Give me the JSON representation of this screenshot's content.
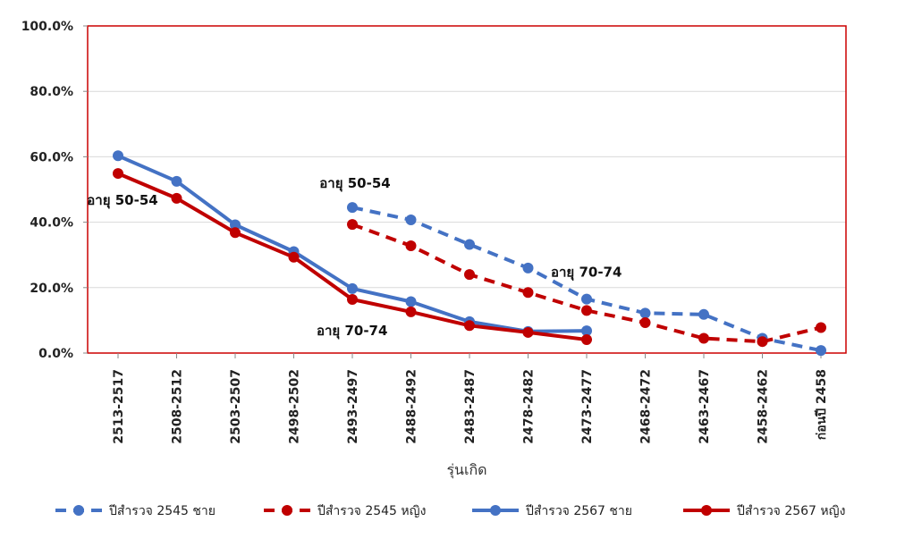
{
  "chart_data": {
    "type": "line",
    "xlabel": "รุ่นเกิด",
    "ylabel": "",
    "ylim": [
      0,
      100
    ],
    "y_tick_labels": [
      "0.0%",
      "20.0%",
      "40.0%",
      "60.0%",
      "80.0%",
      "100.0%"
    ],
    "y_ticks": [
      0,
      20,
      40,
      60,
      80,
      100
    ],
    "categories": [
      "2513-2517",
      "2508-2512",
      "2503-2507",
      "2498-2502",
      "2493-2497",
      "2488-2492",
      "2483-2487",
      "2478-2482",
      "2473-2477",
      "2468-2472",
      "2463-2467",
      "2458-2462",
      "ก่อนปี 2458"
    ],
    "grid": true,
    "legend_position": "bottom",
    "series": [
      {
        "name": "ปีสำรวจ 2545 ชาย",
        "color": "#4472C4",
        "dashed": true,
        "values": [
          null,
          null,
          null,
          null,
          44.5,
          40.7,
          33.2,
          26.0,
          16.5,
          12.2,
          11.8,
          4.5,
          0.8
        ]
      },
      {
        "name": "ปีสำรวจ 2545 หญิง",
        "color": "#C00000",
        "dashed": true,
        "values": [
          null,
          null,
          null,
          null,
          39.3,
          32.8,
          24.0,
          18.5,
          13.0,
          9.3,
          4.5,
          3.5,
          7.8
        ]
      },
      {
        "name": "ปีสำรวจ 2567 ชาย",
        "color": "#4472C4",
        "dashed": false,
        "values": [
          60.3,
          52.5,
          39.2,
          31.0,
          19.7,
          15.7,
          9.6,
          6.6,
          6.8,
          null,
          null,
          null,
          null
        ]
      },
      {
        "name": "ปีสำรวจ 2567 หญิง",
        "color": "#C00000",
        "dashed": false,
        "values": [
          54.9,
          47.3,
          36.8,
          29.3,
          16.4,
          12.6,
          8.4,
          6.3,
          4.1,
          null,
          null,
          null,
          null
        ]
      }
    ],
    "annotations": [
      {
        "text": "อายุ 50-54",
        "series": 3,
        "index": 0
      },
      {
        "text": "อายุ 70-74",
        "series": 3,
        "index": 4
      },
      {
        "text": "อายุ 50-54",
        "series": 0,
        "index": 4
      },
      {
        "text": "อายุ 70-74",
        "series": 0,
        "index": 8
      }
    ],
    "plot_border_color": "#CC0000",
    "gridline_color": "#D9D9D9"
  }
}
